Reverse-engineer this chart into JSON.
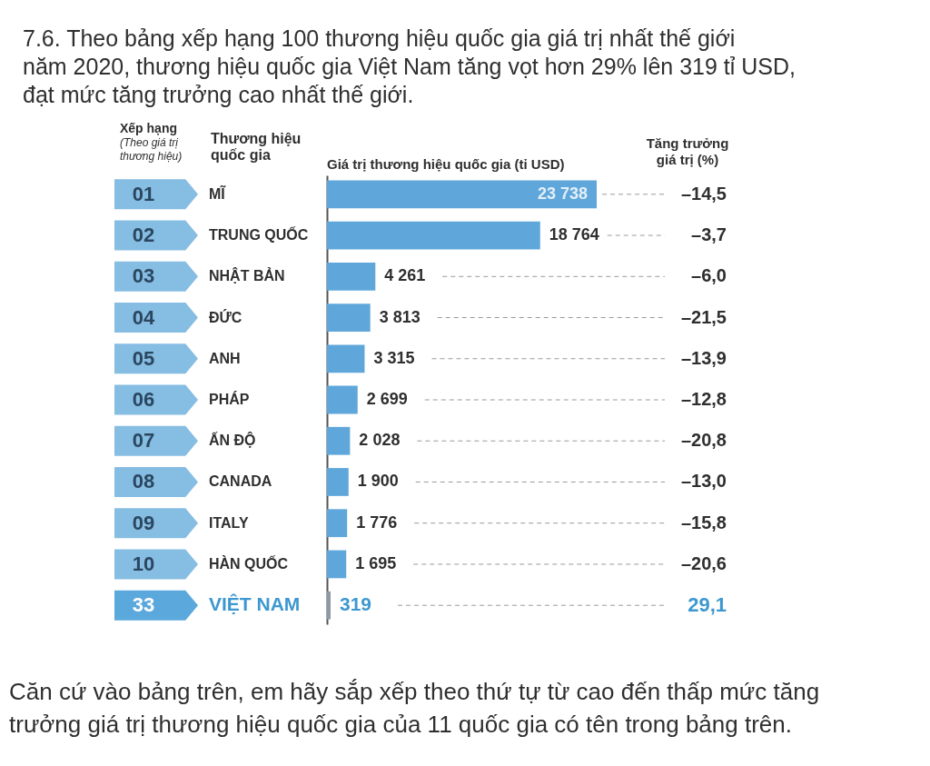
{
  "chart_data": {
    "type": "bar",
    "orientation": "horizontal",
    "title": "7.6. Theo bảng xếp hạng 100 thương hiệu quốc gia giá trị nhất thế giới năm 2020, thương hiệu quốc gia Việt Nam tăng vọt hơn 29% lên 319 tỉ USD, đạt mức tăng trưởng cao nhất thế giới.",
    "xlabel": "Giá trị thương hiệu quốc gia (tỉ USD)",
    "ylabel": "Thương hiệu quốc gia",
    "categories": [
      "MĨ",
      "TRUNG QUỐC",
      "NHẬT BẢN",
      "ĐỨC",
      "ANH",
      "PHÁP",
      "ẤN ĐỘ",
      "CANADA",
      "ITALY",
      "HÀN QUỐC",
      "VIỆT NAM"
    ],
    "values": [
      23738,
      18764,
      4261,
      3813,
      3315,
      2699,
      2028,
      1900,
      1776,
      1695,
      319
    ],
    "colors": [
      "#5fa7da",
      "#5fa7da",
      "#5fa7da",
      "#5fa7da",
      "#5fa7da",
      "#5fa7da",
      "#5fa7da",
      "#5fa7da",
      "#5fa7da",
      "#5fa7da",
      "#8d9aa5"
    ],
    "value_labels": [
      "23 738",
      "18 764",
      "4 261",
      "3 813",
      "3 315",
      "2 699",
      "2 028",
      "1 900",
      "1 776",
      "1 695",
      "319"
    ],
    "annotations": [
      "Xếp hạng (Theo giá trị thương hiệu)",
      "Tăng trưởng giá trị (%)",
      "01",
      "02",
      "03",
      "04",
      "05",
      "06",
      "07",
      "08",
      "09",
      "10",
      "33",
      "–14,5",
      "–3,7",
      "–6,0",
      "–21,5",
      "–13,9",
      "–12,8",
      "–20,8",
      "–13,0",
      "–15,8",
      "–20,6",
      "29,1",
      "Căn cứ vào bảng trên, em hãy sắp xếp theo thứ tự từ cao đến thấp mức tăng trưởng giá trị thương hiệu quốc gia của 11 quốc gia có tên trong bảng trên."
    ]
  }
}
